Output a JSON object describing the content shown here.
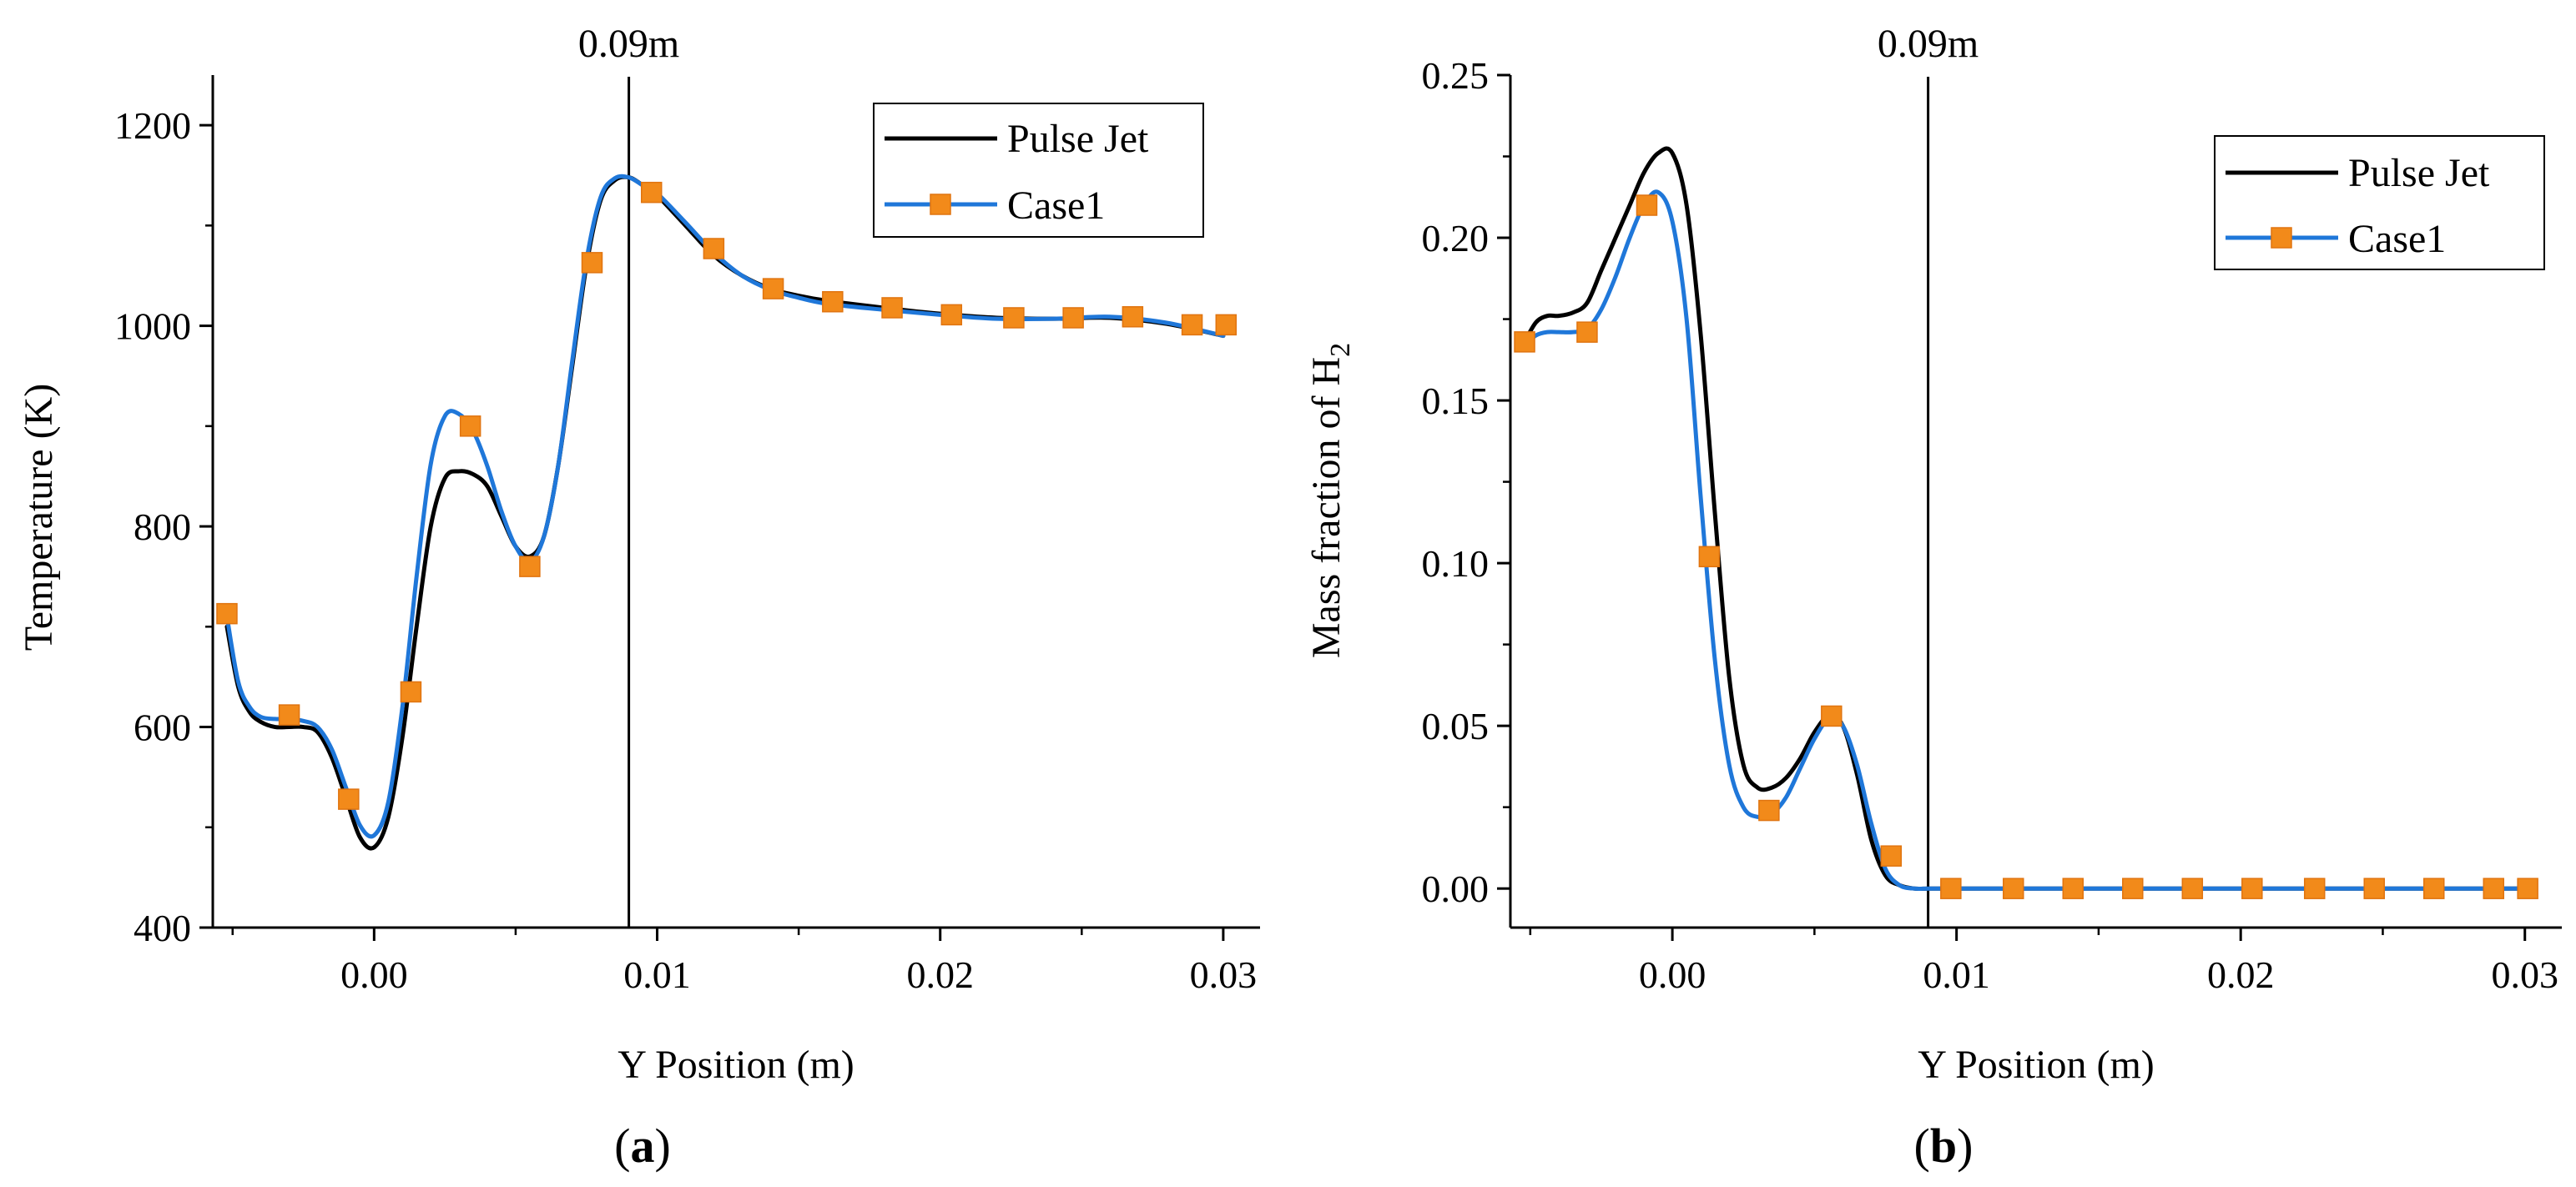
{
  "colors": {
    "pulse_jet": "#000000",
    "case1_line": "#1f77d9",
    "case1_marker": "#f28a1a",
    "marker_edge": "#e07410"
  },
  "chart_data": [
    {
      "type": "line",
      "panel_label_open": "(",
      "panel_label_letter": "a",
      "panel_label_close": ")",
      "xlabel": "Y Position (m)",
      "ylabel": "Temperature (K)",
      "xlim": [
        -0.0057,
        0.0313
      ],
      "ylim": [
        400,
        1250
      ],
      "xticks": [
        0.0,
        0.01,
        0.02,
        0.03
      ],
      "xtick_labels": [
        "0.00",
        "0.01",
        "0.02",
        "0.03"
      ],
      "yticks": [
        400,
        600,
        800,
        1000,
        1200
      ],
      "ytick_labels": [
        "400",
        "600",
        "800",
        "1000",
        "1200"
      ],
      "vline": {
        "x": 0.009,
        "label": "0.09m"
      },
      "legend": {
        "position": "top-right",
        "entries": [
          "Pulse Jet",
          "Case1"
        ]
      },
      "series": [
        {
          "name": "Pulse Jet",
          "x": [
            -0.0052,
            -0.0048,
            -0.0044,
            -0.004,
            -0.0035,
            -0.003,
            -0.0025,
            -0.002,
            -0.0015,
            -0.001,
            -0.0005,
            0.0,
            0.0005,
            0.001,
            0.0015,
            0.002,
            0.0025,
            0.003,
            0.0035,
            0.004,
            0.0045,
            0.005,
            0.0055,
            0.006,
            0.0065,
            0.007,
            0.0075,
            0.008,
            0.0085,
            0.009,
            0.0095,
            0.01,
            0.011,
            0.012,
            0.013,
            0.014,
            0.015,
            0.016,
            0.018,
            0.02,
            0.022,
            0.024,
            0.026,
            0.028,
            0.03
          ],
          "values": [
            700,
            640,
            615,
            605,
            600,
            600,
            600,
            595,
            570,
            530,
            490,
            480,
            510,
            590,
            700,
            800,
            848,
            855,
            852,
            840,
            810,
            780,
            770,
            790,
            860,
            960,
            1060,
            1125,
            1145,
            1148,
            1140,
            1130,
            1100,
            1070,
            1050,
            1037,
            1030,
            1025,
            1018,
            1012,
            1008,
            1007,
            1008,
            1002,
            990
          ]
        },
        {
          "name": "Case1",
          "x": [
            -0.0052,
            -0.0048,
            -0.0044,
            -0.004,
            -0.0035,
            -0.003,
            -0.0025,
            -0.002,
            -0.0015,
            -0.001,
            -0.0005,
            0.0,
            0.0005,
            0.001,
            0.0015,
            0.002,
            0.0025,
            0.003,
            0.0035,
            0.004,
            0.0045,
            0.005,
            0.0055,
            0.006,
            0.0065,
            0.007,
            0.0075,
            0.008,
            0.0085,
            0.009,
            0.0095,
            0.01,
            0.011,
            0.012,
            0.013,
            0.014,
            0.015,
            0.016,
            0.018,
            0.02,
            0.022,
            0.024,
            0.026,
            0.028,
            0.03
          ],
          "values": [
            710,
            645,
            620,
            610,
            608,
            608,
            606,
            600,
            578,
            540,
            502,
            492,
            525,
            620,
            750,
            862,
            910,
            912,
            895,
            860,
            815,
            780,
            765,
            790,
            860,
            965,
            1065,
            1128,
            1147,
            1148,
            1140,
            1132,
            1103,
            1073,
            1050,
            1036,
            1028,
            1022,
            1016,
            1011,
            1007,
            1007,
            1009,
            1003,
            990
          ]
        }
      ],
      "markers": {
        "series": "Case1",
        "x": [
          -0.0052,
          -0.003,
          -0.0009,
          0.0013,
          0.0034,
          0.0055,
          0.0077,
          0.0098,
          0.012,
          0.0141,
          0.0162,
          0.0183,
          0.0204,
          0.0226,
          0.0247,
          0.0268,
          0.0289,
          0.0301
        ],
        "values": [
          713,
          612,
          528,
          635,
          900,
          760,
          1063,
          1133,
          1077,
          1037,
          1024,
          1018,
          1011,
          1008,
          1008,
          1009,
          1001,
          1001
        ]
      }
    },
    {
      "type": "line",
      "panel_label_open": "(",
      "panel_label_letter": "b",
      "panel_label_close": ")",
      "xlabel": "Y Position (m)",
      "ylabel_main": "Mass fraction of H",
      "ylabel_sub": "2",
      "xlim": [
        -0.0057,
        0.0313
      ],
      "ylim": [
        -0.012,
        0.25
      ],
      "xticks": [
        0.0,
        0.01,
        0.02,
        0.03
      ],
      "xtick_labels": [
        "0.00",
        "0.01",
        "0.02",
        "0.03"
      ],
      "yticks": [
        0.0,
        0.05,
        0.1,
        0.15,
        0.2,
        0.25
      ],
      "ytick_labels": [
        "0.00",
        "0.05",
        "0.10",
        "0.15",
        "0.20",
        "0.25"
      ],
      "vline": {
        "x": 0.009,
        "label": "0.09m"
      },
      "legend": {
        "position": "top-right",
        "entries": [
          "Pulse Jet",
          "Case1"
        ]
      },
      "series": [
        {
          "name": "Pulse Jet",
          "x": [
            -0.0052,
            -0.0048,
            -0.0044,
            -0.004,
            -0.0035,
            -0.003,
            -0.0025,
            -0.002,
            -0.0015,
            -0.001,
            -0.0005,
            0.0,
            0.0005,
            0.001,
            0.0015,
            0.002,
            0.0025,
            0.003,
            0.0035,
            0.004,
            0.0045,
            0.005,
            0.0055,
            0.006,
            0.0065,
            0.007,
            0.0075,
            0.008,
            0.0085,
            0.009,
            0.0095,
            0.01,
            0.012,
            0.014,
            0.016,
            0.018,
            0.02,
            0.022,
            0.024,
            0.026,
            0.028,
            0.03
          ],
          "values": [
            0.168,
            0.174,
            0.176,
            0.176,
            0.177,
            0.18,
            0.19,
            0.2,
            0.21,
            0.22,
            0.226,
            0.226,
            0.21,
            0.17,
            0.115,
            0.065,
            0.038,
            0.031,
            0.031,
            0.034,
            0.04,
            0.048,
            0.053,
            0.05,
            0.035,
            0.015,
            0.004,
            0.001,
            0.0,
            0.0,
            0.0,
            0.0,
            0.0,
            0.0,
            0.0,
            0.0,
            0.0,
            0.0,
            0.0,
            0.0,
            0.0,
            0.0
          ]
        },
        {
          "name": "Case1",
          "x": [
            -0.0052,
            -0.0048,
            -0.0044,
            -0.004,
            -0.0035,
            -0.003,
            -0.0025,
            -0.002,
            -0.0015,
            -0.001,
            -0.0005,
            0.0,
            0.0005,
            0.001,
            0.0015,
            0.002,
            0.0025,
            0.003,
            0.0035,
            0.004,
            0.0045,
            0.005,
            0.0055,
            0.006,
            0.0065,
            0.007,
            0.0075,
            0.008,
            0.0085,
            0.009,
            0.0095,
            0.01,
            0.012,
            0.014,
            0.016,
            0.018,
            0.02,
            0.022,
            0.024,
            0.026,
            0.028,
            0.03
          ],
          "values": [
            0.167,
            0.17,
            0.171,
            0.171,
            0.171,
            0.172,
            0.178,
            0.188,
            0.2,
            0.21,
            0.214,
            0.205,
            0.175,
            0.12,
            0.07,
            0.038,
            0.025,
            0.022,
            0.023,
            0.028,
            0.037,
            0.046,
            0.052,
            0.05,
            0.038,
            0.02,
            0.006,
            0.001,
            0.0,
            0.0,
            0.0,
            0.0,
            0.0,
            0.0,
            0.0,
            0.0,
            0.0,
            0.0,
            0.0,
            0.0,
            0.0,
            0.0
          ]
        }
      ],
      "markers": {
        "series": "Case1",
        "x": [
          -0.0052,
          -0.003,
          -0.0009,
          0.0013,
          0.0034,
          0.0056,
          0.0077,
          0.0098,
          0.012,
          0.0141,
          0.0162,
          0.0183,
          0.0204,
          0.0226,
          0.0247,
          0.0268,
          0.0289,
          0.0301
        ],
        "values": [
          0.168,
          0.171,
          0.21,
          0.102,
          0.024,
          0.053,
          0.01,
          0.0,
          0.0,
          0.0,
          0.0,
          0.0,
          0.0,
          0.0,
          0.0,
          0.0,
          0.0,
          0.0
        ]
      }
    }
  ]
}
